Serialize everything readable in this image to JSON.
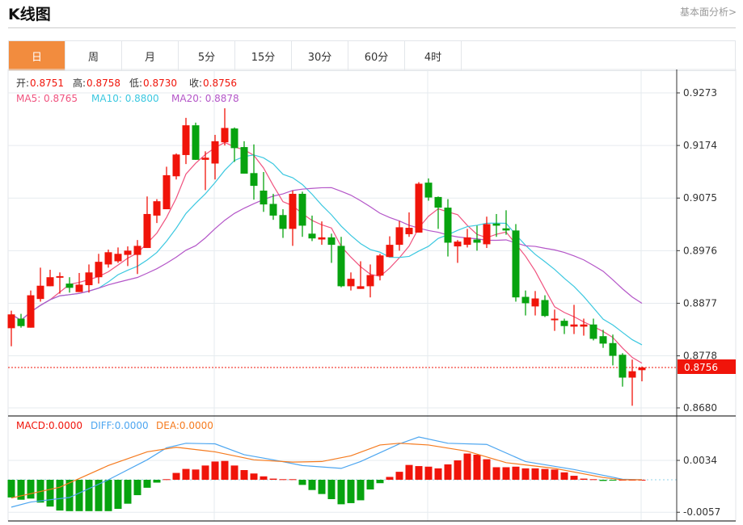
{
  "header": {
    "title": "K线图",
    "link": "基本面分析>"
  },
  "tabs": [
    {
      "label": "日",
      "active": true
    },
    {
      "label": "周"
    },
    {
      "label": "月"
    },
    {
      "label": "5分"
    },
    {
      "label": "15分"
    },
    {
      "label": "30分"
    },
    {
      "label": "60分"
    },
    {
      "label": "4时"
    }
  ],
  "ohlc_info": {
    "open_label": "开:",
    "open": "0.8751",
    "high_label": "高:",
    "high": "0.8758",
    "low_label": "低:",
    "low": "0.8730",
    "close_label": "收:",
    "close": "0.8756"
  },
  "ma_info": {
    "ma5": "MA5: 0.8765",
    "ma10": "MA10: 0.8800",
    "ma20": "MA20: 0.8878"
  },
  "macd_info": {
    "macd": "MACD:0.0000",
    "diff": "DIFF:0.0000",
    "dea": "DEA:0.0000"
  },
  "colors": {
    "up": "#F0140A",
    "down": "#07A30F",
    "ma5": "#F0537F",
    "ma10": "#3CC8E0",
    "ma20": "#B456C8",
    "diff": "#4DA6F0",
    "dea": "#F57A1E",
    "active_tab": "#F28C3E"
  },
  "chart_data": {
    "type": "candlestick",
    "price_ticks": [
      "0.9273",
      "0.9174",
      "0.9075",
      "0.8976",
      "0.8877",
      "0.8778",
      "0.8680"
    ],
    "price_range": [
      0.868,
      0.9273
    ],
    "current_price": "0.8756",
    "candles": [
      [
        0.883,
        0.8863,
        0.8796,
        0.8856
      ],
      [
        0.8848,
        0.8857,
        0.8831,
        0.8834
      ],
      [
        0.8831,
        0.8901,
        0.8831,
        0.8892
      ],
      [
        0.8885,
        0.8944,
        0.888,
        0.891
      ],
      [
        0.8909,
        0.894,
        0.8909,
        0.8926
      ],
      [
        0.8925,
        0.8935,
        0.8895,
        0.8928
      ],
      [
        0.8914,
        0.8926,
        0.8897,
        0.8906
      ],
      [
        0.8898,
        0.8934,
        0.8898,
        0.8912
      ],
      [
        0.8911,
        0.895,
        0.8897,
        0.8935
      ],
      [
        0.8926,
        0.897,
        0.8914,
        0.8955
      ],
      [
        0.895,
        0.8978,
        0.8944,
        0.8973
      ],
      [
        0.8956,
        0.8982,
        0.8953,
        0.897
      ],
      [
        0.8968,
        0.8984,
        0.8947,
        0.8976
      ],
      [
        0.8968,
        0.8996,
        0.8932,
        0.8985
      ],
      [
        0.8981,
        0.9078,
        0.8981,
        0.9045
      ],
      [
        0.9042,
        0.9073,
        0.9028,
        0.9069
      ],
      [
        0.9054,
        0.9134,
        0.9054,
        0.9118
      ],
      [
        0.9116,
        0.9159,
        0.911,
        0.9157
      ],
      [
        0.9156,
        0.9226,
        0.9139,
        0.9212
      ],
      [
        0.9212,
        0.9217,
        0.9147,
        0.9147
      ],
      [
        0.9147,
        0.9163,
        0.909,
        0.9151
      ],
      [
        0.914,
        0.9194,
        0.911,
        0.9182
      ],
      [
        0.918,
        0.9244,
        0.9174,
        0.9207
      ],
      [
        0.9206,
        0.9208,
        0.9143,
        0.9169
      ],
      [
        0.9171,
        0.9182,
        0.9121,
        0.9121
      ],
      [
        0.9122,
        0.9176,
        0.9072,
        0.9098
      ],
      [
        0.9089,
        0.9124,
        0.9049,
        0.9063
      ],
      [
        0.9064,
        0.9083,
        0.9034,
        0.9042
      ],
      [
        0.9043,
        0.9054,
        0.9,
        0.9017
      ],
      [
        0.9017,
        0.9089,
        0.8985,
        0.9083
      ],
      [
        0.9083,
        0.9087,
        0.9002,
        0.9023
      ],
      [
        0.9008,
        0.9042,
        0.8994,
        0.8999
      ],
      [
        0.8997,
        0.9031,
        0.8987,
        0.9001
      ],
      [
        0.9001,
        0.9008,
        0.8953,
        0.8987
      ],
      [
        0.8985,
        0.9002,
        0.8907,
        0.8909
      ],
      [
        0.8909,
        0.8935,
        0.8901,
        0.8923
      ],
      [
        0.8904,
        0.8956,
        0.8904,
        0.8909
      ],
      [
        0.8909,
        0.895,
        0.8888,
        0.893
      ],
      [
        0.8929,
        0.897,
        0.892,
        0.8967
      ],
      [
        0.8964,
        0.9003,
        0.8964,
        0.8987
      ],
      [
        0.8987,
        0.9032,
        0.8976,
        0.902
      ],
      [
        0.9007,
        0.9048,
        0.9002,
        0.9019
      ],
      [
        0.901,
        0.9105,
        0.901,
        0.9102
      ],
      [
        0.9104,
        0.9112,
        0.907,
        0.9076
      ],
      [
        0.9077,
        0.9078,
        0.9017,
        0.9057
      ],
      [
        0.9057,
        0.9073,
        0.8965,
        0.8991
      ],
      [
        0.8984,
        0.8996,
        0.8953,
        0.8993
      ],
      [
        0.8987,
        0.9017,
        0.8982,
        0.9001
      ],
      [
        0.8997,
        0.9023,
        0.8976,
        0.8991
      ],
      [
        0.8988,
        0.904,
        0.8981,
        0.9026
      ],
      [
        0.9027,
        0.9045,
        0.9002,
        0.9023
      ],
      [
        0.9018,
        0.9052,
        0.9006,
        0.9014
      ],
      [
        0.9014,
        0.9026,
        0.888,
        0.8888
      ],
      [
        0.8889,
        0.8901,
        0.8854,
        0.8877
      ],
      [
        0.8871,
        0.89,
        0.8854,
        0.8886
      ],
      [
        0.8883,
        0.8892,
        0.8851,
        0.8853
      ],
      [
        0.8845,
        0.8865,
        0.8825,
        0.8848
      ],
      [
        0.8844,
        0.8848,
        0.8819,
        0.8834
      ],
      [
        0.8833,
        0.8874,
        0.8819,
        0.8837
      ],
      [
        0.8833,
        0.8848,
        0.8816,
        0.8837
      ],
      [
        0.8837,
        0.8848,
        0.8807,
        0.881
      ],
      [
        0.8815,
        0.8827,
        0.8793,
        0.8801
      ],
      [
        0.8802,
        0.8818,
        0.876,
        0.8778
      ],
      [
        0.878,
        0.8783,
        0.872,
        0.8737
      ],
      [
        0.8737,
        0.8771,
        0.8684,
        0.8749
      ],
      [
        0.8751,
        0.8758,
        0.873,
        0.8756
      ]
    ],
    "macd_ticks": [
      "0.0034",
      "-0.0057"
    ],
    "macd_hist": [
      -0.0031,
      -0.0035,
      -0.0033,
      -0.004,
      -0.0047,
      -0.0054,
      -0.0055,
      -0.0055,
      -0.0055,
      -0.0055,
      -0.0055,
      -0.0051,
      -0.0042,
      -0.0027,
      -0.0014,
      -0.0005,
      0.0001,
      0.0012,
      0.0019,
      0.0018,
      0.0025,
      0.0032,
      0.0033,
      0.0025,
      0.0017,
      0.0011,
      0.0006,
      0.0002,
      0.0001,
      0.0001,
      -0.0009,
      -0.0018,
      -0.0025,
      -0.0034,
      -0.0043,
      -0.0041,
      -0.0036,
      -0.0017,
      -0.0006,
      0.0005,
      0.0014,
      0.0026,
      0.0024,
      0.0023,
      0.002,
      0.0027,
      0.0034,
      0.0046,
      0.0044,
      0.0036,
      0.0022,
      0.0022,
      0.0023,
      0.002,
      0.002,
      0.0019,
      0.0018,
      0.0013,
      0.0007,
      0.0002,
      0.0001,
      -0.0002,
      -0.0001,
      0.0,
      0.0,
      0.0
    ],
    "diff": [
      [
        0,
        -0.0048
      ],
      [
        2,
        -0.0039
      ],
      [
        6,
        -0.0031
      ],
      [
        10,
        0.0
      ],
      [
        14,
        0.0035
      ],
      [
        16,
        0.0056
      ],
      [
        18,
        0.0064
      ],
      [
        21,
        0.0063
      ],
      [
        24,
        0.0044
      ],
      [
        27,
        0.0035
      ],
      [
        30,
        0.0025
      ],
      [
        34,
        0.002
      ],
      [
        36,
        0.0032
      ],
      [
        40,
        0.0063
      ],
      [
        42,
        0.0075
      ],
      [
        45,
        0.0064
      ],
      [
        49,
        0.0062
      ],
      [
        53,
        0.0032
      ],
      [
        58,
        0.0018
      ],
      [
        63,
        0.0001
      ],
      [
        65,
        0.0
      ]
    ],
    "dea": [
      [
        0,
        -0.0032
      ],
      [
        5,
        -0.0013
      ],
      [
        10,
        0.0025
      ],
      [
        14,
        0.0049
      ],
      [
        17,
        0.0057
      ],
      [
        21,
        0.0049
      ],
      [
        25,
        0.0035
      ],
      [
        29,
        0.0031
      ],
      [
        32,
        0.0032
      ],
      [
        35,
        0.0042
      ],
      [
        38,
        0.0061
      ],
      [
        40,
        0.0064
      ],
      [
        43,
        0.0061
      ],
      [
        47,
        0.005
      ],
      [
        51,
        0.003
      ],
      [
        56,
        0.002
      ],
      [
        61,
        0.0004
      ],
      [
        63,
        0.0
      ],
      [
        65,
        0.0
      ]
    ]
  }
}
